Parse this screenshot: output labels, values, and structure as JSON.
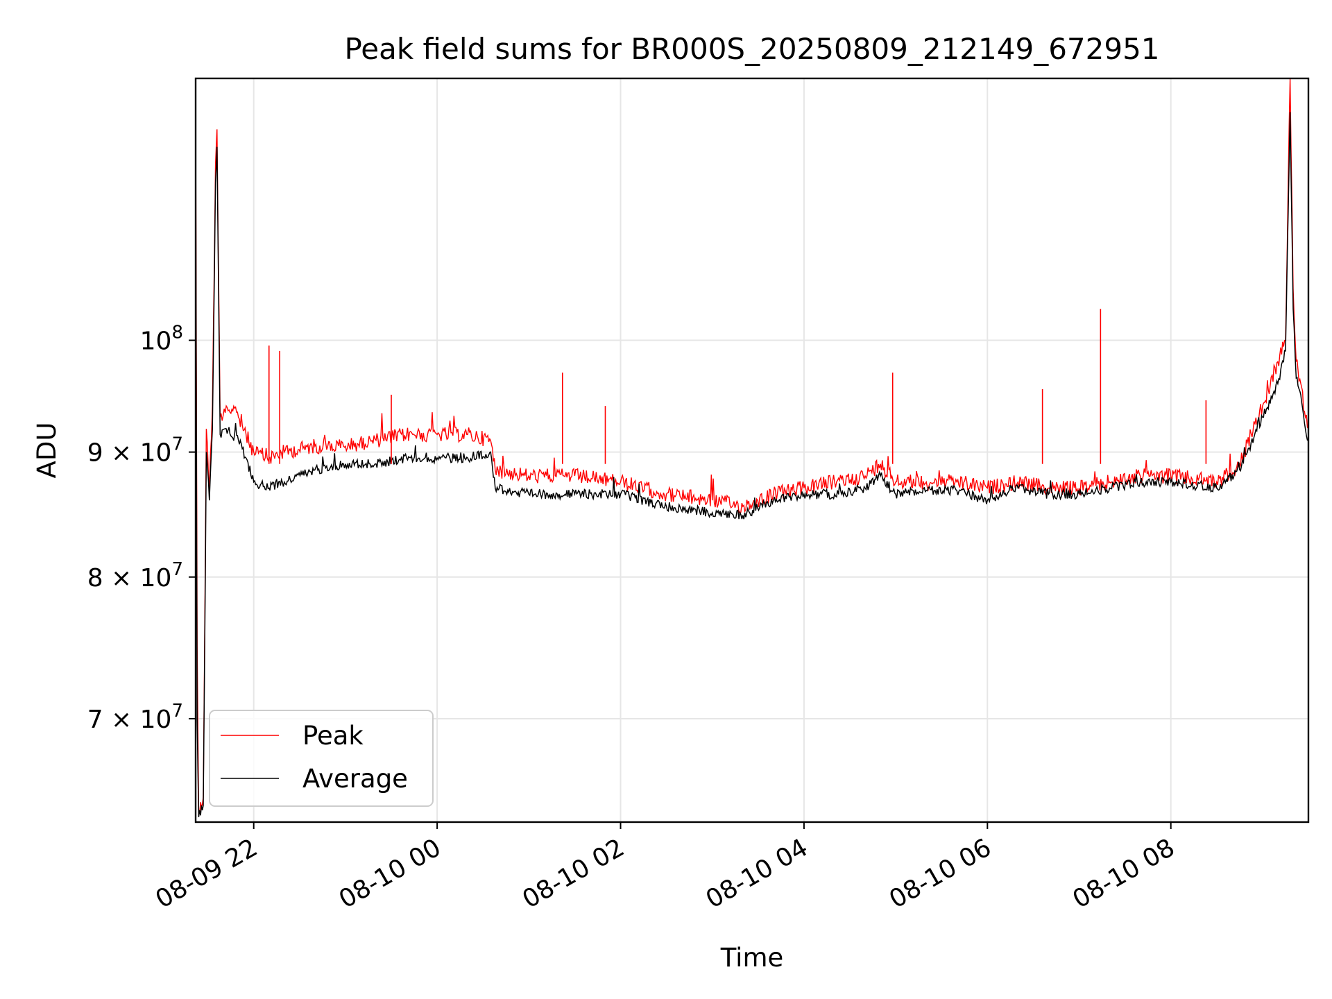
{
  "chart_data": {
    "type": "line",
    "title": "Peak field sums for BR000S_20250809_212149_672951",
    "xlabel": "Time",
    "ylabel": "ADU",
    "yscale": "log",
    "grid": true,
    "legend_placement": "lower-left",
    "xlim": [
      "2025-08-09 21:22",
      "2025-08-10 09:30"
    ],
    "ylim": [
      63500000,
      128000000
    ],
    "x_ticks": [
      {
        "value": "2025-08-09 22:00",
        "label": "08-09 22"
      },
      {
        "value": "2025-08-10 00:00",
        "label": "08-10 00"
      },
      {
        "value": "2025-08-10 02:00",
        "label": "08-10 02"
      },
      {
        "value": "2025-08-10 04:00",
        "label": "08-10 04"
      },
      {
        "value": "2025-08-10 06:00",
        "label": "08-10 06"
      },
      {
        "value": "2025-08-10 08:00",
        "label": "08-10 08"
      }
    ],
    "y_ticks": [
      {
        "value": 70000000,
        "mantissa": "7",
        "base": "10",
        "exp": "7"
      },
      {
        "value": 80000000,
        "mantissa": "8",
        "base": "10",
        "exp": "7"
      },
      {
        "value": 90000000,
        "mantissa": "9",
        "base": "10",
        "exp": "7"
      },
      {
        "value": 100000000,
        "mantissa": "",
        "base": "10",
        "exp": "8"
      }
    ],
    "series": [
      {
        "name": "Peak",
        "color": "#ff0000",
        "points": [
          [
            "2025-08-09 21:22",
            125000000
          ],
          [
            "2025-08-09 21:23",
            75000000
          ],
          [
            "2025-08-09 21:24",
            64000000
          ],
          [
            "2025-08-09 21:27",
            65000000
          ],
          [
            "2025-08-09 21:29",
            92000000
          ],
          [
            "2025-08-09 21:31",
            87000000
          ],
          [
            "2025-08-09 21:33",
            94000000
          ],
          [
            "2025-08-09 21:35",
            118000000
          ],
          [
            "2025-08-09 21:36",
            122000000
          ],
          [
            "2025-08-09 21:38",
            93000000
          ],
          [
            "2025-08-09 21:42",
            94000000
          ],
          [
            "2025-08-09 21:50",
            93000000
          ],
          [
            "2025-08-09 21:55",
            91500000
          ],
          [
            "2025-08-09 22:00",
            90000000
          ],
          [
            "2025-08-09 22:10",
            89500000
          ],
          [
            "2025-08-09 22:20",
            90000000
          ],
          [
            "2025-08-09 22:40",
            90500000
          ],
          [
            "2025-08-09 23:00",
            90500000
          ],
          [
            "2025-08-09 23:20",
            91000000
          ],
          [
            "2025-08-09 23:40",
            91500000
          ],
          [
            "2025-08-10 00:00",
            91500000
          ],
          [
            "2025-08-10 00:20",
            91500000
          ],
          [
            "2025-08-10 00:35",
            91000000
          ],
          [
            "2025-08-10 00:38",
            88500000
          ],
          [
            "2025-08-10 01:00",
            88000000
          ],
          [
            "2025-08-10 01:30",
            88000000
          ],
          [
            "2025-08-10 02:00",
            87500000
          ],
          [
            "2025-08-10 02:30",
            86500000
          ],
          [
            "2025-08-10 03:00",
            86000000
          ],
          [
            "2025-08-10 03:20",
            85500000
          ],
          [
            "2025-08-10 03:40",
            86500000
          ],
          [
            "2025-08-10 04:00",
            87000000
          ],
          [
            "2025-08-10 04:20",
            87500000
          ],
          [
            "2025-08-10 04:40",
            88000000
          ],
          [
            "2025-08-10 04:50",
            89000000
          ],
          [
            "2025-08-10 05:00",
            87500000
          ],
          [
            "2025-08-10 05:20",
            87500000
          ],
          [
            "2025-08-10 05:40",
            87500000
          ],
          [
            "2025-08-10 06:00",
            87000000
          ],
          [
            "2025-08-10 06:20",
            87500000
          ],
          [
            "2025-08-10 06:40",
            87000000
          ],
          [
            "2025-08-10 07:00",
            87000000
          ],
          [
            "2025-08-10 07:20",
            87500000
          ],
          [
            "2025-08-10 07:40",
            88000000
          ],
          [
            "2025-08-10 08:00",
            88000000
          ],
          [
            "2025-08-10 08:30",
            87500000
          ],
          [
            "2025-08-10 08:45",
            89000000
          ],
          [
            "2025-08-10 09:00",
            94000000
          ],
          [
            "2025-08-10 09:10",
            98000000
          ],
          [
            "2025-08-10 09:15",
            100000000
          ],
          [
            "2025-08-10 09:18",
            128000000
          ],
          [
            "2025-08-10 09:20",
            105000000
          ],
          [
            "2025-08-10 09:22",
            98000000
          ],
          [
            "2025-08-10 09:25",
            96000000
          ],
          [
            "2025-08-10 09:28",
            93000000
          ],
          [
            "2025-08-10 09:30",
            92000000
          ]
        ]
      },
      {
        "name": "Average",
        "color": "#000000",
        "points": [
          [
            "2025-08-09 21:22",
            120000000
          ],
          [
            "2025-08-09 21:23",
            70000000
          ],
          [
            "2025-08-09 21:24",
            63800000
          ],
          [
            "2025-08-09 21:27",
            64500000
          ],
          [
            "2025-08-09 21:29",
            90000000
          ],
          [
            "2025-08-09 21:31",
            86000000
          ],
          [
            "2025-08-09 21:33",
            92000000
          ],
          [
            "2025-08-09 21:35",
            116000000
          ],
          [
            "2025-08-09 21:36",
            120000000
          ],
          [
            "2025-08-09 21:38",
            91500000
          ],
          [
            "2025-08-09 21:42",
            92000000
          ],
          [
            "2025-08-09 21:50",
            91000000
          ],
          [
            "2025-08-09 21:55",
            89500000
          ],
          [
            "2025-08-09 22:00",
            87500000
          ],
          [
            "2025-08-09 22:10",
            87000000
          ],
          [
            "2025-08-09 22:20",
            87500000
          ],
          [
            "2025-08-09 22:40",
            88500000
          ],
          [
            "2025-08-09 23:00",
            89000000
          ],
          [
            "2025-08-09 23:20",
            89000000
          ],
          [
            "2025-08-09 23:40",
            89500000
          ],
          [
            "2025-08-10 00:00",
            89500000
          ],
          [
            "2025-08-10 00:20",
            89500000
          ],
          [
            "2025-08-10 00:35",
            90000000
          ],
          [
            "2025-08-10 00:38",
            87000000
          ],
          [
            "2025-08-10 01:00",
            86500000
          ],
          [
            "2025-08-10 01:30",
            86500000
          ],
          [
            "2025-08-10 02:00",
            86500000
          ],
          [
            "2025-08-10 02:30",
            85500000
          ],
          [
            "2025-08-10 03:00",
            85000000
          ],
          [
            "2025-08-10 03:20",
            84800000
          ],
          [
            "2025-08-10 03:40",
            86000000
          ],
          [
            "2025-08-10 04:00",
            86500000
          ],
          [
            "2025-08-10 04:20",
            86500000
          ],
          [
            "2025-08-10 04:40",
            87000000
          ],
          [
            "2025-08-10 04:50",
            88000000
          ],
          [
            "2025-08-10 05:00",
            86500000
          ],
          [
            "2025-08-10 05:20",
            86800000
          ],
          [
            "2025-08-10 05:40",
            86800000
          ],
          [
            "2025-08-10 06:00",
            86000000
          ],
          [
            "2025-08-10 06:20",
            87000000
          ],
          [
            "2025-08-10 06:40",
            86500000
          ],
          [
            "2025-08-10 07:00",
            86500000
          ],
          [
            "2025-08-10 07:20",
            87000000
          ],
          [
            "2025-08-10 07:40",
            87500000
          ],
          [
            "2025-08-10 08:00",
            87500000
          ],
          [
            "2025-08-10 08:30",
            87000000
          ],
          [
            "2025-08-10 08:45",
            88500000
          ],
          [
            "2025-08-10 09:00",
            93000000
          ],
          [
            "2025-08-10 09:10",
            96000000
          ],
          [
            "2025-08-10 09:15",
            99000000
          ],
          [
            "2025-08-10 09:18",
            124000000
          ],
          [
            "2025-08-10 09:20",
            103000000
          ],
          [
            "2025-08-10 09:22",
            96500000
          ],
          [
            "2025-08-10 09:25",
            95000000
          ],
          [
            "2025-08-10 09:28",
            92000000
          ],
          [
            "2025-08-10 09:30",
            91000000
          ]
        ]
      }
    ],
    "spikes": [
      {
        "series": "Peak",
        "x": "2025-08-09 22:10",
        "y": 99500000
      },
      {
        "series": "Peak",
        "x": "2025-08-09 22:17",
        "y": 99000000
      },
      {
        "series": "Peak",
        "x": "2025-08-09 23:30",
        "y": 95000000
      },
      {
        "series": "Peak",
        "x": "2025-08-10 01:22",
        "y": 97000000
      },
      {
        "series": "Peak",
        "x": "2025-08-10 01:50",
        "y": 94000000
      },
      {
        "series": "Peak",
        "x": "2025-08-10 04:58",
        "y": 97000000
      },
      {
        "series": "Peak",
        "x": "2025-08-10 06:36",
        "y": 95500000
      },
      {
        "series": "Peak",
        "x": "2025-08-10 07:14",
        "y": 103000000
      },
      {
        "series": "Peak",
        "x": "2025-08-10 08:23",
        "y": 94500000
      }
    ]
  }
}
